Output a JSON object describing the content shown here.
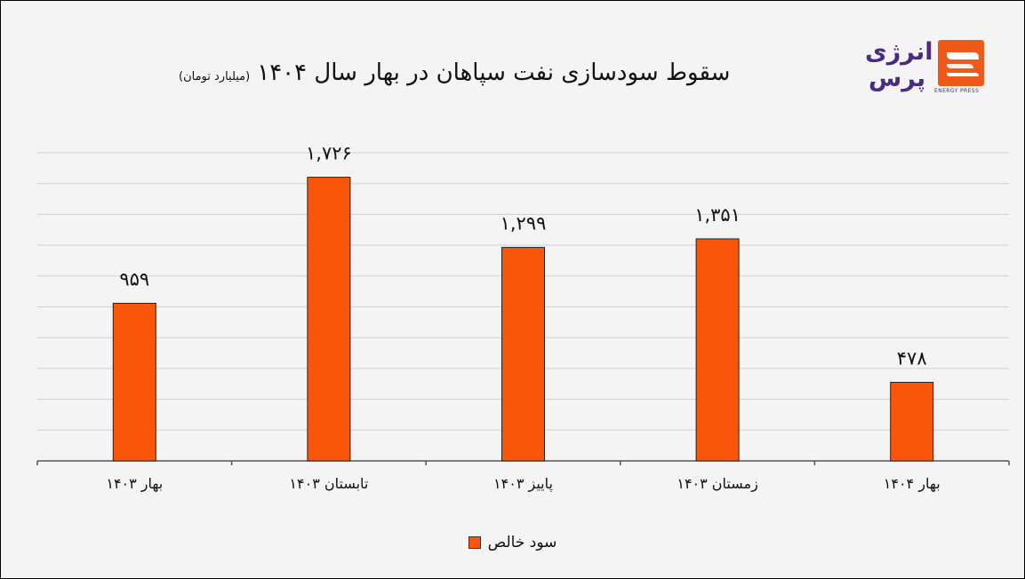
{
  "header": {
    "title": "سقوط سودسازی نفت سپاهان در بهار سال ۱۴۰۴",
    "subtitle": "(میلیارد تومان)"
  },
  "logo": {
    "word_top": "انرژی",
    "word_bottom": "پرس",
    "tagline": "ENERGY PRESS",
    "icon": "energy-press-logo-icon",
    "colors": {
      "text": "#4b2a83",
      "mark": "#ef5a1a"
    }
  },
  "chart_data": {
    "type": "bar",
    "categories": [
      "بهار ۱۴۰۳",
      "تابستان ۱۴۰۳",
      "پاییز ۱۴۰۳",
      "زمستان ۱۴۰۳",
      "بهار ۱۴۰۴"
    ],
    "series": [
      {
        "name": "سود خالص",
        "values": [
          959,
          1726,
          1299,
          1351,
          478
        ],
        "labels": [
          "۹۵۹",
          "۱,۷۲۶",
          "۱,۲۹۹",
          "۱,۳۵۱",
          "۴۷۸"
        ],
        "color": "#f9560b"
      }
    ],
    "ylim": [
      0,
      1875
    ],
    "grid": true,
    "legend": "bottom-center"
  }
}
